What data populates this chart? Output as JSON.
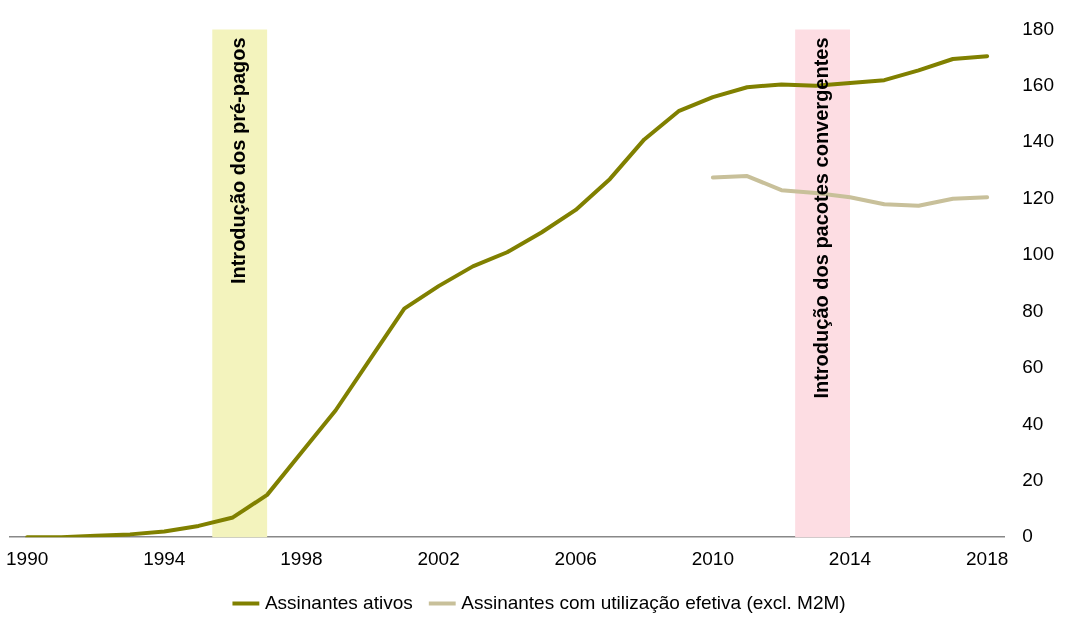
{
  "chart_data": {
    "type": "line",
    "x": [
      1990,
      1991,
      1992,
      1993,
      1994,
      1995,
      1996,
      1997,
      1998,
      1999,
      2000,
      2001,
      2002,
      2003,
      2004,
      2005,
      2006,
      2007,
      2008,
      2009,
      2010,
      2011,
      2012,
      2013,
      2014,
      2015,
      2016,
      2017,
      2018
    ],
    "series": [
      {
        "name": "Assinantes ativos",
        "color": "#808000",
        "values": [
          0,
          0,
          0.5,
          1,
          2,
          4,
          7,
          15,
          30,
          45,
          63,
          81,
          89,
          96,
          101,
          108,
          116,
          127,
          141,
          151,
          156,
          159.5,
          160.5,
          160,
          161,
          162,
          165.5,
          169.5,
          170.5
        ]
      },
      {
        "name": "Assinantes com utilização efetiva (excl. M2M)",
        "color": "#c8c09a",
        "x": [
          2010,
          2011,
          2012,
          2013,
          2014,
          2015,
          2016,
          2017,
          2018
        ],
        "values": [
          127.5,
          128,
          123,
          122,
          120.5,
          118,
          117.5,
          120,
          120.5
        ]
      }
    ],
    "xlim": [
      1989.5,
      2018.5
    ],
    "xticks": [
      1990,
      1994,
      1998,
      2002,
      2006,
      2010,
      2014,
      2018
    ],
    "ylim": [
      0,
      180
    ],
    "yticks": [
      0,
      20,
      40,
      60,
      80,
      100,
      120,
      140,
      160,
      180
    ],
    "bands": [
      {
        "axis": "x",
        "from": 1995.4,
        "to": 1997,
        "label": "Introdução dos pré-pagos",
        "color": "#f3f3bd"
      },
      {
        "axis": "x",
        "from": 2012.4,
        "to": 2014,
        "label": "Introdução dos pacotes convergentes",
        "color": "#fddde3"
      }
    ],
    "grid": false,
    "legend": "bottom",
    "marker": "none",
    "line_style": "solid"
  }
}
